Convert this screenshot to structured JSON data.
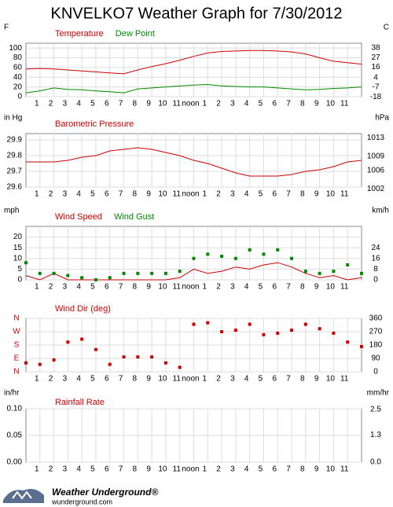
{
  "title": "KNVELKO7 Weather Graph for 7/30/2012",
  "chart_data": [
    {
      "type": "line",
      "y_label": "F",
      "y2_label": "C",
      "x": [
        0,
        1,
        2,
        3,
        4,
        5,
        6,
        7,
        8,
        9,
        10,
        11,
        12,
        13,
        14,
        15,
        16,
        17,
        18,
        19,
        20,
        21,
        22,
        23,
        24
      ],
      "xlim": [
        0,
        24
      ],
      "xticks": [
        1,
        2,
        3,
        4,
        5,
        6,
        7,
        8,
        9,
        10,
        11,
        {
          "value": 12,
          "label": "noon"
        },
        {
          "value": 13,
          "label": "1"
        },
        {
          "value": 14,
          "label": "2"
        },
        {
          "value": 15,
          "label": "3"
        },
        {
          "value": 16,
          "label": "4"
        },
        {
          "value": 17,
          "label": "5"
        },
        {
          "value": 18,
          "label": "6"
        },
        {
          "value": 19,
          "label": "7"
        },
        {
          "value": 20,
          "label": "8"
        },
        {
          "value": 21,
          "label": "9"
        },
        {
          "value": 22,
          "label": "10"
        },
        {
          "value": 23,
          "label": "11"
        }
      ],
      "ylim": [
        0,
        110
      ],
      "yticks": [
        0,
        20,
        40,
        60,
        80,
        100
      ],
      "y2lim": [
        -17.8,
        43.3
      ],
      "y2ticks": [
        -18,
        -7,
        4,
        16,
        27,
        38
      ],
      "grid": true,
      "series": [
        {
          "name": "Temperature",
          "color": "#cc0000",
          "mark": "line",
          "values": [
            57,
            58,
            57,
            55,
            53,
            51,
            49,
            47,
            55,
            62,
            68,
            75,
            83,
            90,
            93,
            94,
            95,
            95,
            94,
            92,
            88,
            80,
            73,
            70,
            67
          ]
        },
        {
          "name": "Dew Point",
          "color": "#008800",
          "mark": "line",
          "values": [
            8,
            12,
            18,
            15,
            14,
            12,
            10,
            8,
            16,
            18,
            20,
            22,
            24,
            25,
            22,
            21,
            20,
            20,
            18,
            16,
            14,
            15,
            17,
            18,
            20
          ]
        }
      ]
    },
    {
      "type": "line",
      "y_label": "in Hg",
      "y2_label": "hPa",
      "x": [
        0,
        1,
        2,
        3,
        4,
        5,
        6,
        7,
        8,
        9,
        10,
        11,
        12,
        13,
        14,
        15,
        16,
        17,
        18,
        19,
        20,
        21,
        22,
        23,
        24
      ],
      "xlim": [
        0,
        24
      ],
      "xticks": [
        1,
        2,
        3,
        4,
        5,
        6,
        7,
        8,
        9,
        10,
        11,
        {
          "value": 12,
          "label": "noon"
        },
        {
          "value": 13,
          "label": "1"
        },
        {
          "value": 14,
          "label": "2"
        },
        {
          "value": 15,
          "label": "3"
        },
        {
          "value": 16,
          "label": "4"
        },
        {
          "value": 17,
          "label": "5"
        },
        {
          "value": 18,
          "label": "6"
        },
        {
          "value": 19,
          "label": "7"
        },
        {
          "value": 20,
          "label": "8"
        },
        {
          "value": 21,
          "label": "9"
        },
        {
          "value": 22,
          "label": "10"
        },
        {
          "value": 23,
          "label": "11"
        }
      ],
      "ylim": [
        29.6,
        29.94
      ],
      "yticks": [
        29.6,
        29.7,
        29.8,
        29.9
      ],
      "y2lim": [
        1002.4,
        1013.9
      ],
      "y2ticks": [
        1002,
        1006,
        1009,
        1013
      ],
      "grid": true,
      "series": [
        {
          "name": "Barometric Pressure",
          "color": "#cc0000",
          "mark": "line",
          "values": [
            29.76,
            29.76,
            29.76,
            29.77,
            29.79,
            29.8,
            29.83,
            29.84,
            29.85,
            29.84,
            29.82,
            29.8,
            29.77,
            29.75,
            29.72,
            29.69,
            29.67,
            29.67,
            29.67,
            29.68,
            29.7,
            29.71,
            29.73,
            29.76,
            29.77
          ]
        }
      ]
    },
    {
      "type": "line",
      "y_label": "mph",
      "y2_label": "km/h",
      "x": [
        0,
        1,
        2,
        3,
        4,
        5,
        6,
        7,
        8,
        9,
        10,
        11,
        12,
        13,
        14,
        15,
        16,
        17,
        18,
        19,
        20,
        21,
        22,
        23,
        24
      ],
      "xlim": [
        0,
        24
      ],
      "xticks": [
        1,
        2,
        3,
        4,
        5,
        6,
        7,
        8,
        9,
        10,
        11,
        {
          "value": 12,
          "label": "noon"
        },
        {
          "value": 13,
          "label": "1"
        },
        {
          "value": 14,
          "label": "2"
        },
        {
          "value": 15,
          "label": "3"
        },
        {
          "value": 16,
          "label": "4"
        },
        {
          "value": 17,
          "label": "5"
        },
        {
          "value": 18,
          "label": "6"
        },
        {
          "value": 19,
          "label": "7"
        },
        {
          "value": 20,
          "label": "8"
        },
        {
          "value": 21,
          "label": "9"
        },
        {
          "value": 22,
          "label": "10"
        },
        {
          "value": 23,
          "label": "11"
        }
      ],
      "ylim": [
        0,
        25
      ],
      "yticks": [
        0,
        5,
        10,
        15,
        20
      ],
      "y2lim": [
        0,
        40.2
      ],
      "y2ticks": [
        0,
        8,
        16,
        24
      ],
      "grid": true,
      "series": [
        {
          "name": "Wind Speed",
          "color": "#cc0000",
          "mark": "line",
          "values": [
            2,
            0,
            3,
            0,
            0,
            0,
            0,
            0,
            0,
            0,
            0,
            1,
            5,
            3,
            4,
            6,
            5,
            7,
            8,
            6,
            3,
            1,
            2,
            0,
            1
          ]
        },
        {
          "name": "Wind Gust",
          "color": "#008800",
          "mark": "square",
          "values": [
            8,
            3,
            3,
            2,
            1,
            0,
            1,
            3,
            3,
            3,
            3,
            4,
            10,
            12,
            11,
            10,
            14,
            12,
            14,
            10,
            4,
            3,
            4,
            7,
            3
          ]
        }
      ]
    },
    {
      "type": "line",
      "y2_label": null,
      "x": [
        0,
        1,
        2,
        3,
        4,
        5,
        6,
        7,
        8,
        9,
        10,
        11,
        12,
        13,
        14,
        15,
        16,
        17,
        18,
        19,
        20,
        21,
        22,
        23,
        24
      ],
      "xlim": [
        0,
        24
      ],
      "xticks": [
        1,
        2,
        3,
        4,
        5,
        6,
        7,
        8,
        9,
        10,
        11,
        {
          "value": 12,
          "label": "noon"
        },
        {
          "value": 13,
          "label": "1"
        },
        {
          "value": 14,
          "label": "2"
        },
        {
          "value": 15,
          "label": "3"
        },
        {
          "value": 16,
          "label": "4"
        },
        {
          "value": 17,
          "label": "5"
        },
        {
          "value": 18,
          "label": "6"
        },
        {
          "value": 19,
          "label": "7"
        },
        {
          "value": 20,
          "label": "8"
        },
        {
          "value": 21,
          "label": "9"
        },
        {
          "value": 22,
          "label": "10"
        },
        {
          "value": 23,
          "label": "11"
        }
      ],
      "ylim": [
        0,
        360
      ],
      "compass_ticks": [
        {
          "value": 0,
          "label": "N"
        },
        {
          "value": 90,
          "label": "E"
        },
        {
          "value": 180,
          "label": "S"
        },
        {
          "value": 270,
          "label": "W"
        },
        {
          "value": 360,
          "label": "N"
        }
      ],
      "y2lim": [
        0,
        360
      ],
      "y2ticks": [
        0,
        90,
        180,
        270,
        360
      ],
      "grid": true,
      "series": [
        {
          "name": "Wind Dir (deg)",
          "color": "#cc0000",
          "mark": "square",
          "values": [
            60,
            50,
            80,
            200,
            220,
            150,
            50,
            100,
            100,
            100,
            60,
            30,
            320,
            330,
            270,
            280,
            320,
            250,
            260,
            280,
            320,
            290,
            260,
            200,
            170
          ]
        }
      ]
    },
    {
      "type": "line",
      "y_label": "in/hr",
      "y2_label": "mm/hr",
      "title": "Rainfall Rate",
      "x": [],
      "xlim": [
        0,
        24
      ],
      "xticks": [
        1,
        2,
        3,
        4,
        5,
        6,
        7,
        8,
        9,
        10,
        11,
        {
          "value": 12,
          "label": "noon"
        },
        {
          "value": 13,
          "label": "1"
        },
        {
          "value": 14,
          "label": "2"
        },
        {
          "value": 15,
          "label": "3"
        },
        {
          "value": 16,
          "label": "4"
        },
        {
          "value": 17,
          "label": "5"
        },
        {
          "value": 18,
          "label": "6"
        },
        {
          "value": 19,
          "label": "7"
        },
        {
          "value": 20,
          "label": "8"
        },
        {
          "value": 21,
          "label": "9"
        },
        {
          "value": 22,
          "label": "10"
        },
        {
          "value": 23,
          "label": "11"
        }
      ],
      "ylim": [
        0,
        0.1
      ],
      "yticks": [
        {
          "value": 0,
          "label": "0.00"
        },
        {
          "value": 0.05,
          "label": "0.05"
        },
        {
          "value": 0.1,
          "label": "0.10"
        }
      ],
      "y2lim": [
        0,
        2.54
      ],
      "y2ticks": [
        {
          "value": 0,
          "label": "0.0"
        },
        1.3,
        2.5
      ],
      "grid": true,
      "series": []
    }
  ],
  "footer": {
    "brand": "Weather Underground®",
    "url": "wunderground.com"
  }
}
